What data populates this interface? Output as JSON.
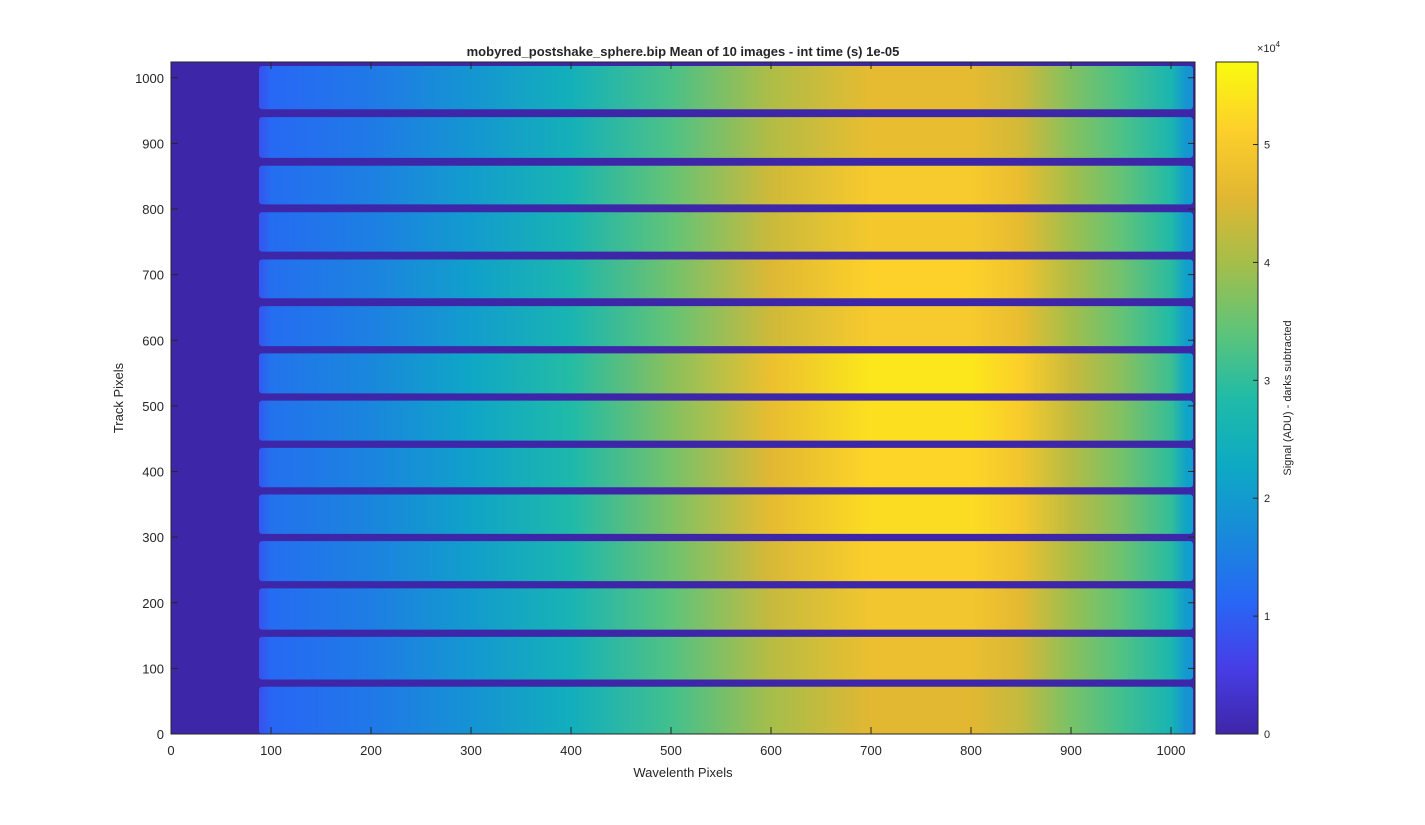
{
  "chart_data": {
    "type": "heatmap",
    "title": "mobyred_postshake_sphere.bip  Mean of 10 images - int time (s) 1e-05",
    "xlabel": "Wavelenth Pixels",
    "ylabel": "Track Pixels",
    "xlim": [
      0,
      1024
    ],
    "ylim": [
      0,
      1024
    ],
    "xticks": [
      0,
      100,
      200,
      300,
      400,
      500,
      600,
      700,
      800,
      900,
      1000
    ],
    "yticks": [
      0,
      100,
      200,
      300,
      400,
      500,
      600,
      700,
      800,
      900,
      1000
    ],
    "colorbar": {
      "label": "Signal (ADU) - darks subtracted",
      "exponent_label": "×10",
      "exponent_power": "4",
      "range": [
        0,
        5.7
      ],
      "ticks": [
        0,
        1,
        2,
        3,
        4,
        5
      ],
      "colormap": "parula"
    },
    "dark_region_x": [
      0,
      88
    ],
    "signal_right_edge_x": 1022,
    "tracks": [
      {
        "y0": 0,
        "y1": 72
      },
      {
        "y0": 83,
        "y1": 148
      },
      {
        "y0": 159,
        "y1": 222
      },
      {
        "y0": 233,
        "y1": 294
      },
      {
        "y0": 305,
        "y1": 365
      },
      {
        "y0": 376,
        "y1": 436
      },
      {
        "y0": 447,
        "y1": 508
      },
      {
        "y0": 519,
        "y1": 580
      },
      {
        "y0": 591,
        "y1": 652
      },
      {
        "y0": 664,
        "y1": 723
      },
      {
        "y0": 735,
        "y1": 795
      },
      {
        "y0": 807,
        "y1": 866
      },
      {
        "y0": 878,
        "y1": 940
      },
      {
        "y0": 952,
        "y1": 1018
      }
    ],
    "spectral_profile": {
      "x": [
        90,
        100,
        200,
        300,
        400,
        500,
        600,
        700,
        800,
        850,
        900,
        950,
        1000,
        1015
      ],
      "value_1e4": [
        0.9,
        1.2,
        1.5,
        2.0,
        2.6,
        3.4,
        4.3,
        4.9,
        4.9,
        4.6,
        3.9,
        3.4,
        2.8,
        2.0
      ]
    },
    "track_gain": [
      0.93,
      0.97,
      1.0,
      1.04,
      1.08,
      1.06,
      1.09,
      1.11,
      1.02,
      1.05,
      1.01,
      1.02,
      0.96,
      0.95
    ]
  }
}
